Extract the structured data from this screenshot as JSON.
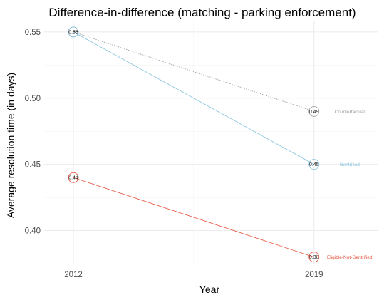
{
  "chart_data": {
    "type": "line",
    "title": "Difference-in-difference (matching - parking enforcement)",
    "xlabel": "Year",
    "ylabel": "Average resolution time (in days)",
    "x": [
      2012,
      2019
    ],
    "x_tick_labels": [
      "2012",
      "2019"
    ],
    "y_ticks": [
      0.4,
      0.45,
      0.5,
      0.55
    ],
    "y_tick_labels": [
      "0.40",
      "0.45",
      "0.50",
      "0.55"
    ],
    "ylim": [
      0.375,
      0.558
    ],
    "grid": true,
    "legend": "none",
    "series": [
      {
        "name": "Counterfactual",
        "values": [
          0.55,
          0.49
        ],
        "point_labels": [
          "0.55",
          "0.49"
        ],
        "color": "#999999",
        "style": "dotted"
      },
      {
        "name": "Gentrified",
        "values": [
          0.55,
          0.45
        ],
        "point_labels": [
          "0.55",
          "0.45"
        ],
        "color": "#7fbfdc",
        "style": "solid"
      },
      {
        "name": "Eligible-Not-Gentrified",
        "values": [
          0.44,
          0.38
        ],
        "point_labels": [
          "0.44",
          "0.38"
        ],
        "color": "#e8503a",
        "style": "solid"
      }
    ]
  }
}
